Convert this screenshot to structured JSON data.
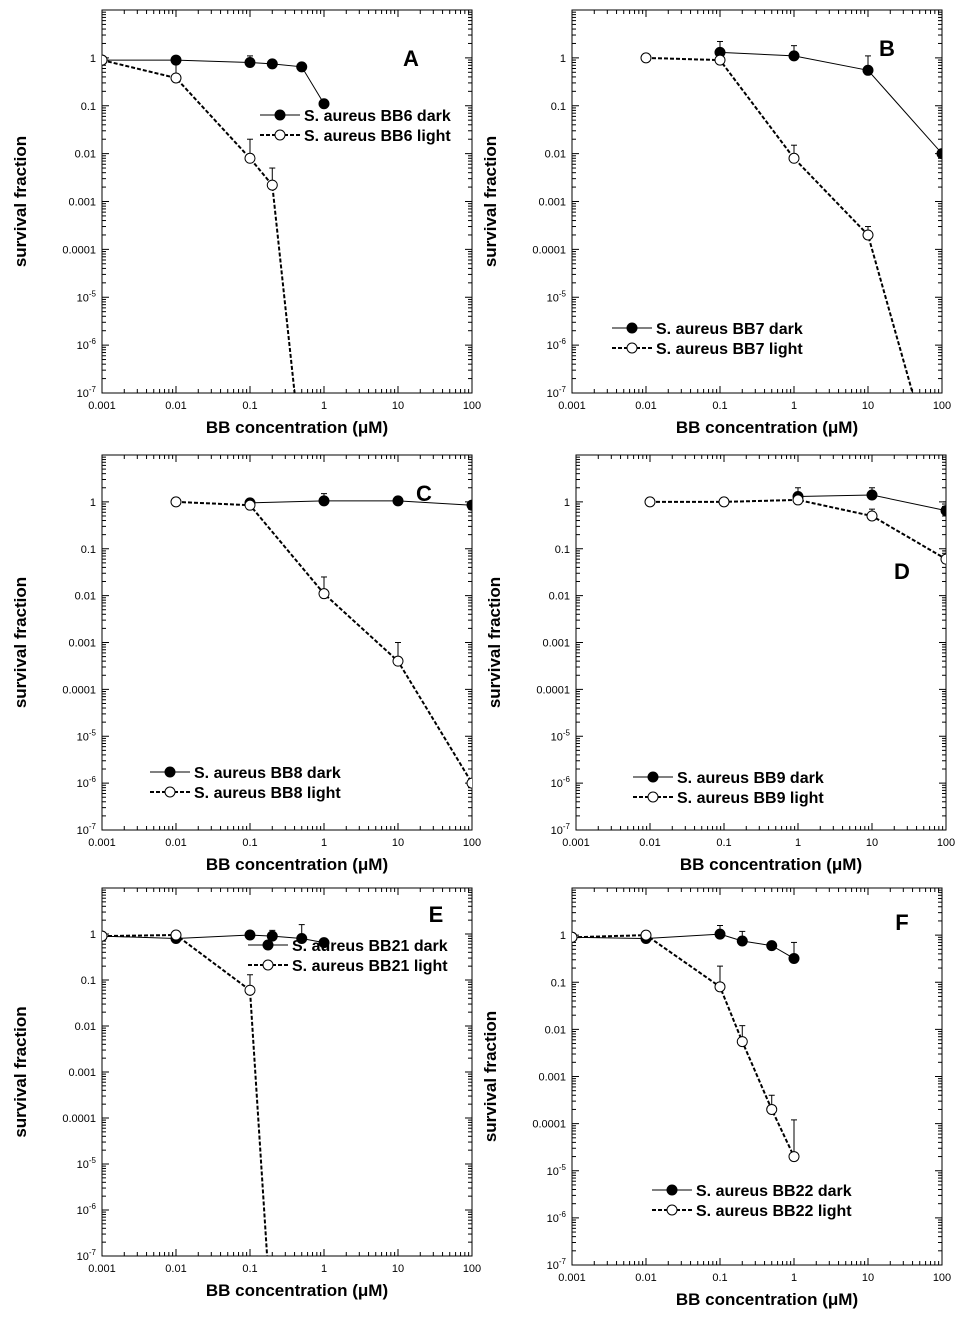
{
  "chart_data": [
    {
      "type": "scatter",
      "panel_label": "A",
      "xlabel": "BB concentration (μM)",
      "ylabel": "survival fraction",
      "xscale": "log",
      "yscale": "log",
      "xlim": [
        0.001,
        100
      ],
      "ylim": [
        1e-07,
        10
      ],
      "x_ticks": [
        "0.001",
        "0.01",
        "0.1",
        "1",
        "10",
        "100"
      ],
      "y_ticks": [
        "1",
        "0.1",
        "0.01",
        "0.001",
        "0.0001",
        "10-5",
        "10-6",
        "10-7"
      ],
      "legend_position": "top-right",
      "series": [
        {
          "name": "S. aureus BB6 dark",
          "marker": "filled-circle",
          "line": "solid",
          "x": [
            0.001,
            0.01,
            0.1,
            0.2,
            0.5,
            1
          ],
          "y": [
            0.9,
            0.9,
            0.8,
            0.75,
            0.65,
            0.11
          ],
          "err_upper": [
            null,
            null,
            1.1,
            null,
            null,
            null
          ]
        },
        {
          "name": "S. aureus BB6 light",
          "marker": "open-circle",
          "line": "dashed",
          "x": [
            0.001,
            0.01,
            0.1,
            0.2
          ],
          "y": [
            0.9,
            0.38,
            0.008,
            0.0022
          ],
          "err_upper": [
            null,
            0.8,
            0.02,
            0.005
          ],
          "tail_to": [
            0.4,
            1e-07
          ]
        }
      ]
    },
    {
      "type": "scatter",
      "panel_label": "B",
      "xlabel": "BB concentration (μM)",
      "ylabel": "survival fraction",
      "xscale": "log",
      "yscale": "log",
      "xlim": [
        0.001,
        100
      ],
      "ylim": [
        1e-07,
        10
      ],
      "x_ticks": [
        "0.001",
        "0.01",
        "0.1",
        "1",
        "10",
        "100"
      ],
      "y_ticks": [
        "1",
        "0.1",
        "0.01",
        "0.001",
        "0.0001",
        "10-5",
        "10-6",
        "10-7"
      ],
      "legend_position": "bottom-left",
      "series": [
        {
          "name": "S. aureus BB7 dark",
          "marker": "filled-circle",
          "line": "solid",
          "x": [
            0.1,
            1,
            10,
            100
          ],
          "y": [
            1.3,
            1.1,
            0.55,
            0.01
          ],
          "err_upper": [
            2.2,
            1.8,
            1.1,
            null
          ]
        },
        {
          "name": "S. aureus BB7 light",
          "marker": "open-circle",
          "line": "dashed",
          "x": [
            0.01,
            0.1,
            1,
            10
          ],
          "y": [
            1.0,
            0.9,
            0.008,
            0.0002
          ],
          "err_upper": [
            null,
            null,
            0.015,
            0.0003
          ],
          "tail_to": [
            40,
            1e-07
          ]
        }
      ]
    },
    {
      "type": "scatter",
      "panel_label": "C",
      "xlabel": "BB concentration (μM)",
      "ylabel": "survival fraction",
      "xscale": "log",
      "yscale": "log",
      "xlim": [
        0.001,
        100
      ],
      "ylim": [
        1e-07,
        10
      ],
      "x_ticks": [
        "0.001",
        "0.01",
        "0.1",
        "1",
        "10",
        "100"
      ],
      "y_ticks": [
        "1",
        "0.1",
        "0.01",
        "0.001",
        "0.0001",
        "10-5",
        "10-6",
        "10-7"
      ],
      "legend_position": "bottom-left",
      "series": [
        {
          "name": "S. aureus BB8 dark",
          "marker": "filled-circle",
          "line": "solid",
          "x": [
            0.1,
            1,
            10,
            100
          ],
          "y": [
            0.95,
            1.05,
            1.05,
            0.85
          ],
          "err_upper": [
            null,
            1.5,
            null,
            null
          ]
        },
        {
          "name": "S. aureus BB8 light",
          "marker": "open-circle",
          "line": "dashed",
          "x": [
            0.01,
            0.1,
            1,
            10,
            100
          ],
          "y": [
            1.0,
            0.85,
            0.011,
            0.0004,
            1e-06
          ],
          "err_upper": [
            null,
            null,
            0.025,
            0.001,
            null
          ]
        }
      ]
    },
    {
      "type": "scatter",
      "panel_label": "D",
      "xlabel": "BB concentration (μM)",
      "ylabel": "survival fraction",
      "xscale": "log",
      "yscale": "log",
      "xlim": [
        0.001,
        100
      ],
      "ylim": [
        1e-07,
        10
      ],
      "x_ticks": [
        "0.001",
        "0.01",
        "0.1",
        "1",
        "10",
        "100"
      ],
      "y_ticks": [
        "1",
        "0.1",
        "0.01",
        "0.001",
        "0.0001",
        "10-5",
        "10-6",
        "10-7"
      ],
      "legend_position": "bottom-left",
      "series": [
        {
          "name": "S. aureus BB9 dark",
          "marker": "filled-circle",
          "line": "solid",
          "x": [
            1,
            10,
            100
          ],
          "y": [
            1.3,
            1.4,
            0.65
          ],
          "err_upper": [
            2.0,
            2.0,
            1.0
          ]
        },
        {
          "name": "S. aureus BB9 light",
          "marker": "open-circle",
          "line": "dashed",
          "x": [
            0.01,
            0.1,
            1,
            10,
            100
          ],
          "y": [
            1.0,
            1.0,
            1.1,
            0.5,
            0.06
          ],
          "err_upper": [
            null,
            null,
            1.5,
            0.7,
            0.09
          ]
        }
      ]
    },
    {
      "type": "scatter",
      "panel_label": "E",
      "xlabel": "BB concentration (μM)",
      "ylabel": "survival fraction",
      "xscale": "log",
      "yscale": "log",
      "xlim": [
        0.001,
        100
      ],
      "ylim": [
        1e-07,
        10
      ],
      "x_ticks": [
        "0.001",
        "0.01",
        "0.1",
        "1",
        "10",
        "100"
      ],
      "y_ticks": [
        "1",
        "0.1",
        "0.01",
        "0.001",
        "0.0001",
        "10-5",
        "10-6",
        "10-7"
      ],
      "legend_position": "top-right",
      "series": [
        {
          "name": "S. aureus BB21 dark",
          "marker": "filled-circle",
          "line": "solid",
          "x": [
            0.001,
            0.01,
            0.1,
            0.2,
            0.5,
            1
          ],
          "y": [
            0.9,
            0.8,
            0.95,
            0.9,
            0.8,
            0.65
          ],
          "err_upper": [
            null,
            null,
            null,
            1.2,
            1.6,
            null
          ]
        },
        {
          "name": "S. aureus BB21 light",
          "marker": "open-circle",
          "line": "dashed",
          "x": [
            0.001,
            0.01,
            0.1
          ],
          "y": [
            0.9,
            0.95,
            0.06
          ],
          "err_upper": [
            null,
            null,
            0.13
          ],
          "tail_to": [
            0.17,
            1e-07
          ]
        }
      ]
    },
    {
      "type": "scatter",
      "panel_label": "F",
      "xlabel": "BB concentration (μM)",
      "ylabel": "survival fraction",
      "xscale": "log",
      "yscale": "log",
      "xlim": [
        0.001,
        100
      ],
      "ylim": [
        1e-07,
        10
      ],
      "x_ticks": [
        "0.001",
        "0.01",
        "0.1",
        "1",
        "10",
        "100"
      ],
      "y_ticks": [
        "1",
        "0.1",
        "0.01",
        "0.001",
        "0.0001",
        "10-5",
        "10-6",
        "10-7"
      ],
      "legend_position": "bottom-right",
      "series": [
        {
          "name": "S. aureus BB22 dark",
          "marker": "filled-circle",
          "line": "solid",
          "x": [
            0.001,
            0.01,
            0.1,
            0.2,
            0.5,
            1
          ],
          "y": [
            0.9,
            0.85,
            1.05,
            0.75,
            0.6,
            0.32
          ],
          "err_upper": [
            null,
            null,
            1.6,
            1.2,
            null,
            0.7
          ]
        },
        {
          "name": "S. aureus BB22 light",
          "marker": "open-circle",
          "line": "dashed",
          "x": [
            0.001,
            0.01,
            0.1,
            0.2,
            0.5,
            1
          ],
          "y": [
            0.9,
            1.0,
            0.08,
            0.0055,
            0.0002,
            2e-05
          ],
          "err_upper": [
            null,
            null,
            0.22,
            0.012,
            0.0004,
            0.00012
          ]
        }
      ]
    }
  ]
}
